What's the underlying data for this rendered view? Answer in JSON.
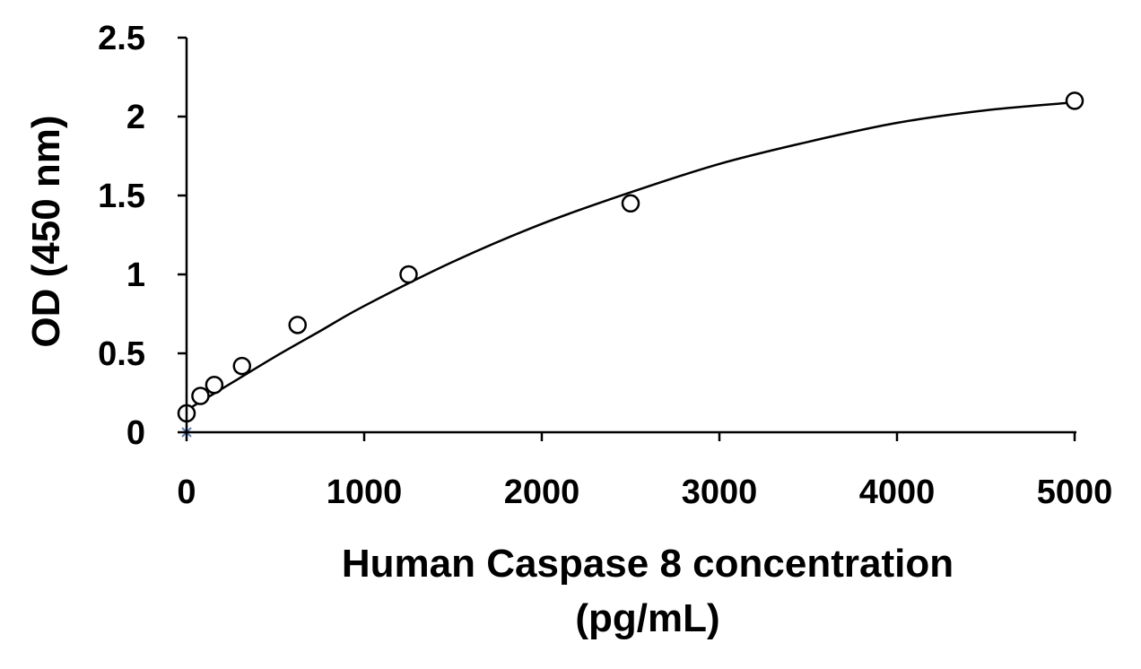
{
  "chart_data": {
    "type": "scatter",
    "title": "",
    "xlabel_lines": [
      "Human Caspase 8 concentration",
      "(pg/mL)"
    ],
    "ylabel": "OD (450 nm)",
    "xlim": [
      0,
      5000
    ],
    "ylim": [
      0,
      2.5
    ],
    "x_ticks": [
      0,
      1000,
      2000,
      3000,
      4000,
      5000
    ],
    "x_tick_labels": [
      "0",
      "1000",
      "2000",
      "3000",
      "4000",
      "5000"
    ],
    "y_ticks": [
      0,
      0.5,
      1,
      1.5,
      2,
      2.5
    ],
    "y_tick_labels": [
      "0",
      "0.5",
      "1",
      "1.5",
      "2",
      "2.5"
    ],
    "grid": false,
    "legend": "none",
    "series": [
      {
        "marker": "open-circle",
        "color": "#000000",
        "points": [
          {
            "x": 0,
            "y": 0.12
          },
          {
            "x": 78,
            "y": 0.23
          },
          {
            "x": 156,
            "y": 0.3
          },
          {
            "x": 312,
            "y": 0.42
          },
          {
            "x": 625,
            "y": 0.68
          },
          {
            "x": 1250,
            "y": 1.0
          },
          {
            "x": 2500,
            "y": 1.45
          },
          {
            "x": 5000,
            "y": 2.1
          }
        ]
      }
    ],
    "fit_curve": {
      "type": "smooth-fit",
      "color": "#000000",
      "points": [
        {
          "x": 0,
          "y": 0.14
        },
        {
          "x": 250,
          "y": 0.31
        },
        {
          "x": 500,
          "y": 0.48
        },
        {
          "x": 750,
          "y": 0.64
        },
        {
          "x": 1000,
          "y": 0.8
        },
        {
          "x": 1500,
          "y": 1.08
        },
        {
          "x": 2000,
          "y": 1.32
        },
        {
          "x": 2500,
          "y": 1.52
        },
        {
          "x": 3000,
          "y": 1.7
        },
        {
          "x": 3500,
          "y": 1.84
        },
        {
          "x": 4000,
          "y": 1.96
        },
        {
          "x": 4500,
          "y": 2.04
        },
        {
          "x": 5000,
          "y": 2.09
        }
      ]
    },
    "blank_marker": {
      "x": 0,
      "y": 0,
      "marker": "x",
      "color": "#5b7fb5"
    }
  }
}
